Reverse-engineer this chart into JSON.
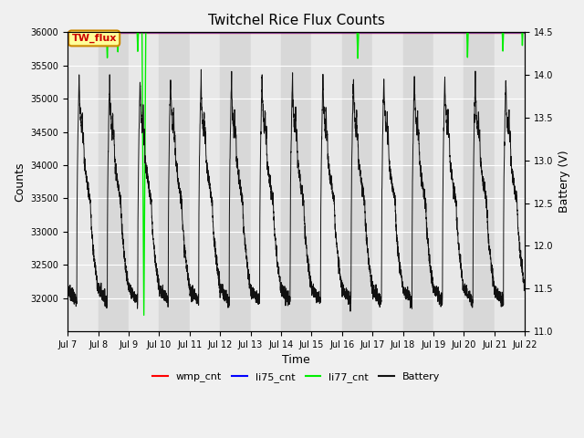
{
  "title": "Twitchel Rice Flux Counts",
  "xlabel": "Time",
  "ylabel_left": "Counts",
  "ylabel_right": "Battery (V)",
  "ylim_left": [
    31500,
    36000
  ],
  "ylim_right": [
    11.0,
    14.5
  ],
  "xtick_labels": [
    "Jul 7",
    "Jul 8",
    "Jul 9",
    "Jul 10",
    "Jul 11",
    "Jul 12",
    "Jul 13",
    "Jul 14",
    "Jul 15",
    "Jul 16",
    "Jul 17",
    "Jul 18",
    "Jul 19",
    "Jul 20",
    "Jul 21",
    "Jul 22"
  ],
  "annotation_text": "TW_flux",
  "annotation_color": "#cc0000",
  "annotation_bg": "#ffff99",
  "annotation_border": "#cc8800",
  "figure_bg": "#f0f0f0",
  "band_dark": "#d8d8d8",
  "band_light": "#e8e8e8",
  "grid_color": "#ffffff",
  "li77_color": "#00ee00",
  "battery_color": "#111111",
  "wmp_color": "#ff0000",
  "li75_color": "#0000ff",
  "batt_min": 11.0,
  "batt_max": 14.5,
  "counts_min": 31500,
  "counts_max": 36000
}
